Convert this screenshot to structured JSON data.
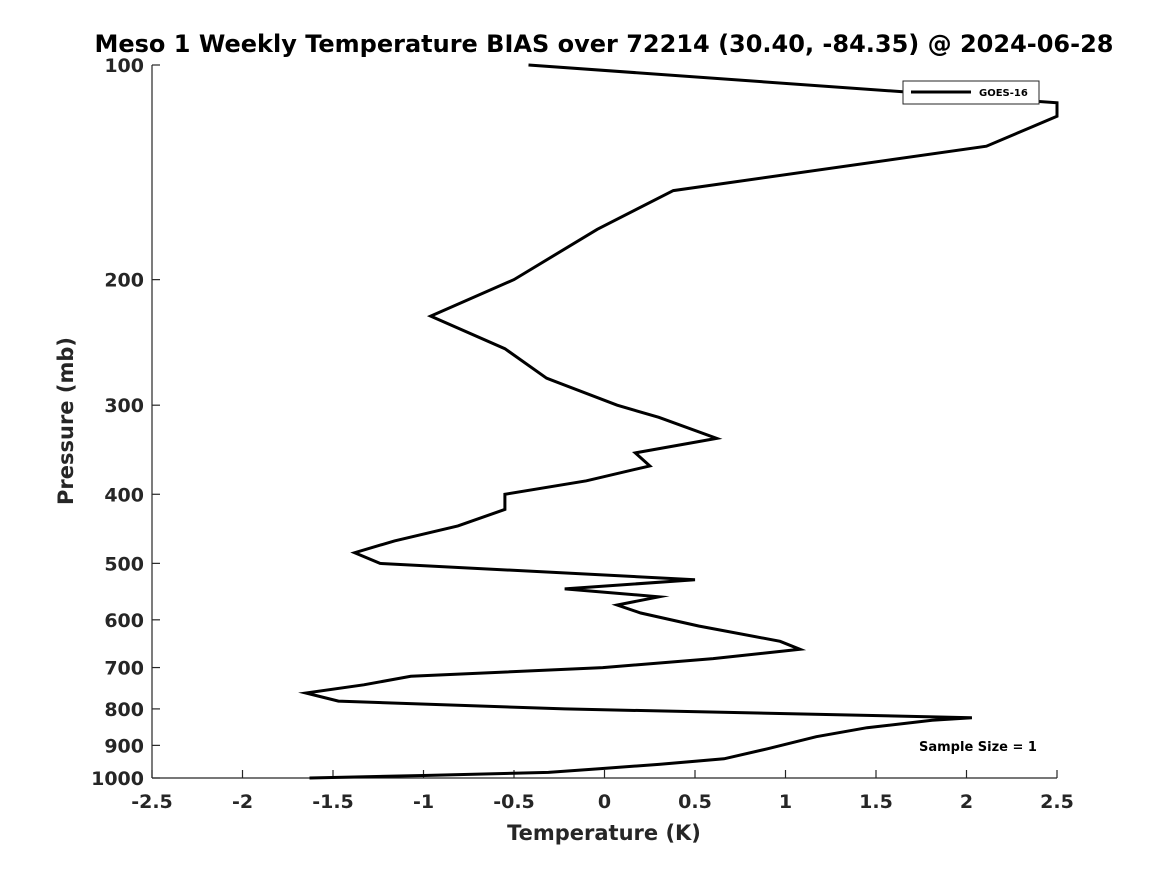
{
  "chart_data": {
    "type": "line",
    "title": "Meso 1 Weekly Temperature BIAS over 72214 (30.40, -84.35) @ 2024-06-28",
    "xlabel": "Temperature (K)",
    "ylabel": "Pressure (mb)",
    "xlim": [
      -2.5,
      2.5
    ],
    "ylim": [
      100,
      1000
    ],
    "y_scale": "log",
    "y_reversed": true,
    "grid": false,
    "x_ticks": [
      -2.5,
      -2,
      -1.5,
      -1,
      -0.5,
      0,
      0.5,
      1,
      1.5,
      2,
      2.5
    ],
    "x_tick_labels": [
      "-2.5",
      "-2",
      "-1.5",
      "-1",
      "-0.5",
      "0",
      "0.5",
      "1",
      "1.5",
      "2",
      "2.5"
    ],
    "y_ticks": [
      100,
      200,
      300,
      400,
      500,
      600,
      700,
      800,
      900,
      1000
    ],
    "y_tick_labels": [
      "100",
      "200",
      "300",
      "400",
      "500",
      "600",
      "700",
      "800",
      "900",
      "1000"
    ],
    "legend": {
      "position": "top-right",
      "entries": [
        "GOES-16"
      ]
    },
    "annotation": "Sample Size = 1",
    "series": [
      {
        "name": "GOES-16",
        "color": "#000000",
        "points": [
          {
            "x": -0.42,
            "y": 100
          },
          {
            "x": 2.5,
            "y": 113
          },
          {
            "x": 2.5,
            "y": 118
          },
          {
            "x": 2.11,
            "y": 130
          },
          {
            "x": 0.38,
            "y": 150
          },
          {
            "x": -0.04,
            "y": 170
          },
          {
            "x": -0.5,
            "y": 200
          },
          {
            "x": -0.96,
            "y": 225
          },
          {
            "x": -0.55,
            "y": 250
          },
          {
            "x": -0.32,
            "y": 275
          },
          {
            "x": 0.07,
            "y": 300
          },
          {
            "x": 0.3,
            "y": 312
          },
          {
            "x": 0.62,
            "y": 334
          },
          {
            "x": 0.17,
            "y": 350
          },
          {
            "x": 0.25,
            "y": 365
          },
          {
            "x": -0.1,
            "y": 383
          },
          {
            "x": -0.55,
            "y": 400
          },
          {
            "x": -0.55,
            "y": 420
          },
          {
            "x": -0.81,
            "y": 443
          },
          {
            "x": -1.16,
            "y": 465
          },
          {
            "x": -1.38,
            "y": 483
          },
          {
            "x": -1.24,
            "y": 500
          },
          {
            "x": 0.5,
            "y": 527
          },
          {
            "x": -0.22,
            "y": 543
          },
          {
            "x": 0.3,
            "y": 557
          },
          {
            "x": 0.07,
            "y": 572
          },
          {
            "x": 0.2,
            "y": 587
          },
          {
            "x": 0.52,
            "y": 612
          },
          {
            "x": 0.97,
            "y": 643
          },
          {
            "x": 1.08,
            "y": 660
          },
          {
            "x": 0.6,
            "y": 680
          },
          {
            "x": -0.01,
            "y": 700
          },
          {
            "x": -1.07,
            "y": 720
          },
          {
            "x": -1.33,
            "y": 740
          },
          {
            "x": -1.65,
            "y": 760
          },
          {
            "x": -1.47,
            "y": 780
          },
          {
            "x": -0.22,
            "y": 800
          },
          {
            "x": 2.03,
            "y": 823
          },
          {
            "x": 1.81,
            "y": 830
          },
          {
            "x": 1.45,
            "y": 850
          },
          {
            "x": 1.17,
            "y": 875
          },
          {
            "x": 0.9,
            "y": 910
          },
          {
            "x": 0.66,
            "y": 940
          },
          {
            "x": 0.3,
            "y": 957
          },
          {
            "x": -0.02,
            "y": 970
          },
          {
            "x": -0.31,
            "y": 982
          },
          {
            "x": -1.0,
            "y": 992
          },
          {
            "x": -1.63,
            "y": 1000
          }
        ]
      }
    ]
  }
}
